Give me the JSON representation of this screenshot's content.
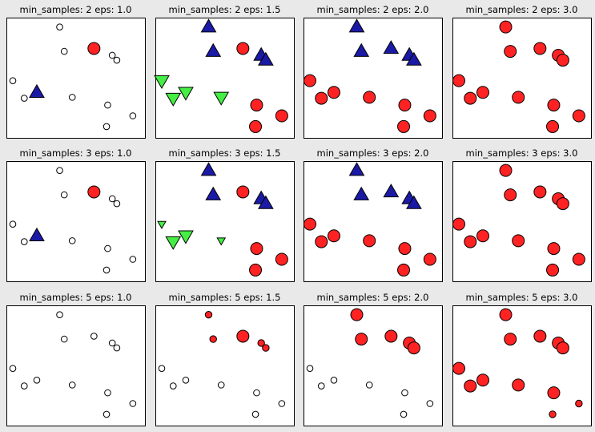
{
  "figure_background": "#e9e9e9",
  "colors": {
    "cluster_0": "#ff2222",
    "cluster_1": "#1a1aa6",
    "cluster_2": "#44ee44",
    "noise": "#ffffff",
    "edge": "#000000"
  },
  "marker_legend": {
    "cluster_0": "circle",
    "cluster_1": "triangle-up",
    "cluster_2": "triangle-down",
    "noise": "small open circle"
  },
  "chart_data": [
    {
      "type": "scatter",
      "title": "min_samples: 2 eps: 1.0",
      "xlim": [
        -2.5,
        3
      ],
      "ylim": [
        -3,
        2.5
      ],
      "points": [
        {
          "x": -0.45,
          "y": 2.35,
          "cluster": -1,
          "core": false
        },
        {
          "x": -0.25,
          "y": 1.1,
          "cluster": -1,
          "core": false
        },
        {
          "x": 1.05,
          "y": 1.25,
          "cluster": 0,
          "core": true
        },
        {
          "x": 1.85,
          "y": 0.9,
          "cluster": -1,
          "core": false
        },
        {
          "x": 2.05,
          "y": 0.65,
          "cluster": -1,
          "core": false
        },
        {
          "x": -2.5,
          "y": -0.4,
          "cluster": -1,
          "core": false
        },
        {
          "x": -2.0,
          "y": -1.3,
          "cluster": -1,
          "core": false
        },
        {
          "x": -1.45,
          "y": -1.0,
          "cluster": 1,
          "core": true
        },
        {
          "x": 0.1,
          "y": -1.25,
          "cluster": -1,
          "core": false
        },
        {
          "x": 1.65,
          "y": -1.65,
          "cluster": -1,
          "core": false
        },
        {
          "x": 2.75,
          "y": -2.2,
          "cluster": -1,
          "core": false
        },
        {
          "x": 1.6,
          "y": -2.75,
          "cluster": -1,
          "core": false
        }
      ]
    },
    {
      "type": "scatter",
      "title": "min_samples: 2 eps: 1.5",
      "xlim": [
        -2.5,
        3
      ],
      "ylim": [
        -3,
        2.5
      ],
      "points": [
        {
          "x": -0.45,
          "y": 2.35,
          "cluster": 1,
          "core": true
        },
        {
          "x": -0.25,
          "y": 1.1,
          "cluster": 1,
          "core": true
        },
        {
          "x": 1.05,
          "y": 1.25,
          "cluster": 0,
          "core": true
        },
        {
          "x": 1.85,
          "y": 0.9,
          "cluster": 1,
          "core": true
        },
        {
          "x": 2.05,
          "y": 0.65,
          "cluster": 1,
          "core": true
        },
        {
          "x": -2.5,
          "y": -0.4,
          "cluster": 2,
          "core": true
        },
        {
          "x": -2.0,
          "y": -1.3,
          "cluster": 2,
          "core": true
        },
        {
          "x": -1.45,
          "y": -1.0,
          "cluster": 2,
          "core": true
        },
        {
          "x": 0.1,
          "y": -1.25,
          "cluster": 2,
          "core": true
        },
        {
          "x": 1.65,
          "y": -1.65,
          "cluster": 0,
          "core": true
        },
        {
          "x": 2.75,
          "y": -2.2,
          "cluster": 0,
          "core": true
        },
        {
          "x": 1.6,
          "y": -2.75,
          "cluster": 0,
          "core": true
        }
      ]
    },
    {
      "type": "scatter",
      "title": "min_samples: 2 eps: 2.0",
      "xlim": [
        -2.5,
        3
      ],
      "ylim": [
        -3,
        2.5
      ],
      "points": [
        {
          "x": -0.45,
          "y": 2.35,
          "cluster": 1,
          "core": true
        },
        {
          "x": -0.25,
          "y": 1.1,
          "cluster": 1,
          "core": true
        },
        {
          "x": 1.05,
          "y": 1.25,
          "cluster": 1,
          "core": true
        },
        {
          "x": 1.85,
          "y": 0.9,
          "cluster": 1,
          "core": true
        },
        {
          "x": 2.05,
          "y": 0.65,
          "cluster": 1,
          "core": true
        },
        {
          "x": -2.5,
          "y": -0.4,
          "cluster": 0,
          "core": true
        },
        {
          "x": -2.0,
          "y": -1.3,
          "cluster": 0,
          "core": true
        },
        {
          "x": -1.45,
          "y": -1.0,
          "cluster": 0,
          "core": true
        },
        {
          "x": 0.1,
          "y": -1.25,
          "cluster": 0,
          "core": true
        },
        {
          "x": 1.65,
          "y": -1.65,
          "cluster": 0,
          "core": true
        },
        {
          "x": 2.75,
          "y": -2.2,
          "cluster": 0,
          "core": true
        },
        {
          "x": 1.6,
          "y": -2.75,
          "cluster": 0,
          "core": true
        }
      ]
    },
    {
      "type": "scatter",
      "title": "min_samples: 2 eps: 3.0",
      "xlim": [
        -2.5,
        3
      ],
      "ylim": [
        -3,
        2.5
      ],
      "points": [
        {
          "x": -0.45,
          "y": 2.35,
          "cluster": 0,
          "core": true
        },
        {
          "x": -0.25,
          "y": 1.1,
          "cluster": 0,
          "core": true
        },
        {
          "x": 1.05,
          "y": 1.25,
          "cluster": 0,
          "core": true
        },
        {
          "x": 1.85,
          "y": 0.9,
          "cluster": 0,
          "core": true
        },
        {
          "x": 2.05,
          "y": 0.65,
          "cluster": 0,
          "core": true
        },
        {
          "x": -2.5,
          "y": -0.4,
          "cluster": 0,
          "core": true
        },
        {
          "x": -2.0,
          "y": -1.3,
          "cluster": 0,
          "core": true
        },
        {
          "x": -1.45,
          "y": -1.0,
          "cluster": 0,
          "core": true
        },
        {
          "x": 0.1,
          "y": -1.25,
          "cluster": 0,
          "core": true
        },
        {
          "x": 1.65,
          "y": -1.65,
          "cluster": 0,
          "core": true
        },
        {
          "x": 2.75,
          "y": -2.2,
          "cluster": 0,
          "core": true
        },
        {
          "x": 1.6,
          "y": -2.75,
          "cluster": 0,
          "core": true
        }
      ]
    },
    {
      "type": "scatter",
      "title": "min_samples: 3 eps: 1.0",
      "xlim": [
        -2.5,
        3
      ],
      "ylim": [
        -3,
        2.5
      ],
      "points": [
        {
          "x": -0.45,
          "y": 2.35,
          "cluster": -1,
          "core": false
        },
        {
          "x": -0.25,
          "y": 1.1,
          "cluster": -1,
          "core": false
        },
        {
          "x": 1.05,
          "y": 1.25,
          "cluster": 0,
          "core": true
        },
        {
          "x": 1.85,
          "y": 0.9,
          "cluster": -1,
          "core": false
        },
        {
          "x": 2.05,
          "y": 0.65,
          "cluster": -1,
          "core": false
        },
        {
          "x": -2.5,
          "y": -0.4,
          "cluster": -1,
          "core": false
        },
        {
          "x": -2.0,
          "y": -1.3,
          "cluster": -1,
          "core": false
        },
        {
          "x": -1.45,
          "y": -1.0,
          "cluster": 1,
          "core": true
        },
        {
          "x": 0.1,
          "y": -1.25,
          "cluster": -1,
          "core": false
        },
        {
          "x": 1.65,
          "y": -1.65,
          "cluster": -1,
          "core": false
        },
        {
          "x": 2.75,
          "y": -2.2,
          "cluster": -1,
          "core": false
        },
        {
          "x": 1.6,
          "y": -2.75,
          "cluster": -1,
          "core": false
        }
      ]
    },
    {
      "type": "scatter",
      "title": "min_samples: 3 eps: 1.5",
      "xlim": [
        -2.5,
        3
      ],
      "ylim": [
        -3,
        2.5
      ],
      "points": [
        {
          "x": -0.45,
          "y": 2.35,
          "cluster": 1,
          "core": true
        },
        {
          "x": -0.25,
          "y": 1.1,
          "cluster": 1,
          "core": true
        },
        {
          "x": 1.05,
          "y": 1.25,
          "cluster": 0,
          "core": true
        },
        {
          "x": 1.85,
          "y": 0.9,
          "cluster": 1,
          "core": true
        },
        {
          "x": 2.05,
          "y": 0.65,
          "cluster": 1,
          "core": true
        },
        {
          "x": -2.5,
          "y": -0.4,
          "cluster": 2,
          "core": false
        },
        {
          "x": -2.0,
          "y": -1.3,
          "cluster": 2,
          "core": true
        },
        {
          "x": -1.45,
          "y": -1.0,
          "cluster": 2,
          "core": true
        },
        {
          "x": 0.1,
          "y": -1.25,
          "cluster": 2,
          "core": false
        },
        {
          "x": 1.65,
          "y": -1.65,
          "cluster": 0,
          "core": true
        },
        {
          "x": 2.75,
          "y": -2.2,
          "cluster": 0,
          "core": true
        },
        {
          "x": 1.6,
          "y": -2.75,
          "cluster": 0,
          "core": true
        }
      ]
    },
    {
      "type": "scatter",
      "title": "min_samples: 3 eps: 2.0",
      "xlim": [
        -2.5,
        3
      ],
      "ylim": [
        -3,
        2.5
      ],
      "points": [
        {
          "x": -0.45,
          "y": 2.35,
          "cluster": 1,
          "core": true
        },
        {
          "x": -0.25,
          "y": 1.1,
          "cluster": 1,
          "core": true
        },
        {
          "x": 1.05,
          "y": 1.25,
          "cluster": 1,
          "core": true
        },
        {
          "x": 1.85,
          "y": 0.9,
          "cluster": 1,
          "core": true
        },
        {
          "x": 2.05,
          "y": 0.65,
          "cluster": 1,
          "core": true
        },
        {
          "x": -2.5,
          "y": -0.4,
          "cluster": 0,
          "core": true
        },
        {
          "x": -2.0,
          "y": -1.3,
          "cluster": 0,
          "core": true
        },
        {
          "x": -1.45,
          "y": -1.0,
          "cluster": 0,
          "core": true
        },
        {
          "x": 0.1,
          "y": -1.25,
          "cluster": 0,
          "core": true
        },
        {
          "x": 1.65,
          "y": -1.65,
          "cluster": 0,
          "core": true
        },
        {
          "x": 2.75,
          "y": -2.2,
          "cluster": 0,
          "core": true
        },
        {
          "x": 1.6,
          "y": -2.75,
          "cluster": 0,
          "core": true
        }
      ]
    },
    {
      "type": "scatter",
      "title": "min_samples: 3 eps: 3.0",
      "xlim": [
        -2.5,
        3
      ],
      "ylim": [
        -3,
        2.5
      ],
      "points": [
        {
          "x": -0.45,
          "y": 2.35,
          "cluster": 0,
          "core": true
        },
        {
          "x": -0.25,
          "y": 1.1,
          "cluster": 0,
          "core": true
        },
        {
          "x": 1.05,
          "y": 1.25,
          "cluster": 0,
          "core": true
        },
        {
          "x": 1.85,
          "y": 0.9,
          "cluster": 0,
          "core": true
        },
        {
          "x": 2.05,
          "y": 0.65,
          "cluster": 0,
          "core": true
        },
        {
          "x": -2.5,
          "y": -0.4,
          "cluster": 0,
          "core": true
        },
        {
          "x": -2.0,
          "y": -1.3,
          "cluster": 0,
          "core": true
        },
        {
          "x": -1.45,
          "y": -1.0,
          "cluster": 0,
          "core": true
        },
        {
          "x": 0.1,
          "y": -1.25,
          "cluster": 0,
          "core": true
        },
        {
          "x": 1.65,
          "y": -1.65,
          "cluster": 0,
          "core": true
        },
        {
          "x": 2.75,
          "y": -2.2,
          "cluster": 0,
          "core": true
        },
        {
          "x": 1.6,
          "y": -2.75,
          "cluster": 0,
          "core": true
        }
      ]
    },
    {
      "type": "scatter",
      "title": "min_samples: 5 eps: 1.0",
      "xlim": [
        -2.5,
        3
      ],
      "ylim": [
        -3,
        2.5
      ],
      "points": [
        {
          "x": -0.45,
          "y": 2.35,
          "cluster": -1,
          "core": false
        },
        {
          "x": -0.25,
          "y": 1.1,
          "cluster": -1,
          "core": false
        },
        {
          "x": 1.05,
          "y": 1.25,
          "cluster": -1,
          "core": false
        },
        {
          "x": 1.85,
          "y": 0.9,
          "cluster": -1,
          "core": false
        },
        {
          "x": 2.05,
          "y": 0.65,
          "cluster": -1,
          "core": false
        },
        {
          "x": -2.5,
          "y": -0.4,
          "cluster": -1,
          "core": false
        },
        {
          "x": -2.0,
          "y": -1.3,
          "cluster": -1,
          "core": false
        },
        {
          "x": -1.45,
          "y": -1.0,
          "cluster": -1,
          "core": false
        },
        {
          "x": 0.1,
          "y": -1.25,
          "cluster": -1,
          "core": false
        },
        {
          "x": 1.65,
          "y": -1.65,
          "cluster": -1,
          "core": false
        },
        {
          "x": 2.75,
          "y": -2.2,
          "cluster": -1,
          "core": false
        },
        {
          "x": 1.6,
          "y": -2.75,
          "cluster": -1,
          "core": false
        }
      ]
    },
    {
      "type": "scatter",
      "title": "min_samples: 5 eps: 1.5",
      "xlim": [
        -2.5,
        3
      ],
      "ylim": [
        -3,
        2.5
      ],
      "points": [
        {
          "x": -0.45,
          "y": 2.35,
          "cluster": 0,
          "core": false
        },
        {
          "x": -0.25,
          "y": 1.1,
          "cluster": 0,
          "core": false
        },
        {
          "x": 1.05,
          "y": 1.25,
          "cluster": 0,
          "core": true
        },
        {
          "x": 1.85,
          "y": 0.9,
          "cluster": 0,
          "core": false
        },
        {
          "x": 2.05,
          "y": 0.65,
          "cluster": 0,
          "core": false
        },
        {
          "x": -2.5,
          "y": -0.4,
          "cluster": -1,
          "core": false
        },
        {
          "x": -2.0,
          "y": -1.3,
          "cluster": -1,
          "core": false
        },
        {
          "x": -1.45,
          "y": -1.0,
          "cluster": -1,
          "core": false
        },
        {
          "x": 0.1,
          "y": -1.25,
          "cluster": -1,
          "core": false
        },
        {
          "x": 1.65,
          "y": -1.65,
          "cluster": -1,
          "core": false
        },
        {
          "x": 2.75,
          "y": -2.2,
          "cluster": -1,
          "core": false
        },
        {
          "x": 1.6,
          "y": -2.75,
          "cluster": -1,
          "core": false
        }
      ]
    },
    {
      "type": "scatter",
      "title": "min_samples: 5 eps: 2.0",
      "xlim": [
        -2.5,
        3
      ],
      "ylim": [
        -3,
        2.5
      ],
      "points": [
        {
          "x": -0.45,
          "y": 2.35,
          "cluster": 0,
          "core": true
        },
        {
          "x": -0.25,
          "y": 1.1,
          "cluster": 0,
          "core": true
        },
        {
          "x": 1.05,
          "y": 1.25,
          "cluster": 0,
          "core": true
        },
        {
          "x": 1.85,
          "y": 0.9,
          "cluster": 0,
          "core": true
        },
        {
          "x": 2.05,
          "y": 0.65,
          "cluster": 0,
          "core": true
        },
        {
          "x": -2.5,
          "y": -0.4,
          "cluster": -1,
          "core": false
        },
        {
          "x": -2.0,
          "y": -1.3,
          "cluster": -1,
          "core": false
        },
        {
          "x": -1.45,
          "y": -1.0,
          "cluster": -1,
          "core": false
        },
        {
          "x": 0.1,
          "y": -1.25,
          "cluster": -1,
          "core": false
        },
        {
          "x": 1.65,
          "y": -1.65,
          "cluster": -1,
          "core": false
        },
        {
          "x": 2.75,
          "y": -2.2,
          "cluster": -1,
          "core": false
        },
        {
          "x": 1.6,
          "y": -2.75,
          "cluster": -1,
          "core": false
        }
      ]
    },
    {
      "type": "scatter",
      "title": "min_samples: 5 eps: 3.0",
      "xlim": [
        -2.5,
        3
      ],
      "ylim": [
        -3,
        2.5
      ],
      "points": [
        {
          "x": -0.45,
          "y": 2.35,
          "cluster": 0,
          "core": true
        },
        {
          "x": -0.25,
          "y": 1.1,
          "cluster": 0,
          "core": true
        },
        {
          "x": 1.05,
          "y": 1.25,
          "cluster": 0,
          "core": true
        },
        {
          "x": 1.85,
          "y": 0.9,
          "cluster": 0,
          "core": true
        },
        {
          "x": 2.05,
          "y": 0.65,
          "cluster": 0,
          "core": true
        },
        {
          "x": -2.5,
          "y": -0.4,
          "cluster": 0,
          "core": true
        },
        {
          "x": -2.0,
          "y": -1.3,
          "cluster": 0,
          "core": true
        },
        {
          "x": -1.45,
          "y": -1.0,
          "cluster": 0,
          "core": true
        },
        {
          "x": 0.1,
          "y": -1.25,
          "cluster": 0,
          "core": true
        },
        {
          "x": 1.65,
          "y": -1.65,
          "cluster": 0,
          "core": true
        },
        {
          "x": 2.75,
          "y": -2.2,
          "cluster": 0,
          "core": false
        },
        {
          "x": 1.6,
          "y": -2.75,
          "cluster": 0,
          "core": false
        }
      ]
    }
  ]
}
